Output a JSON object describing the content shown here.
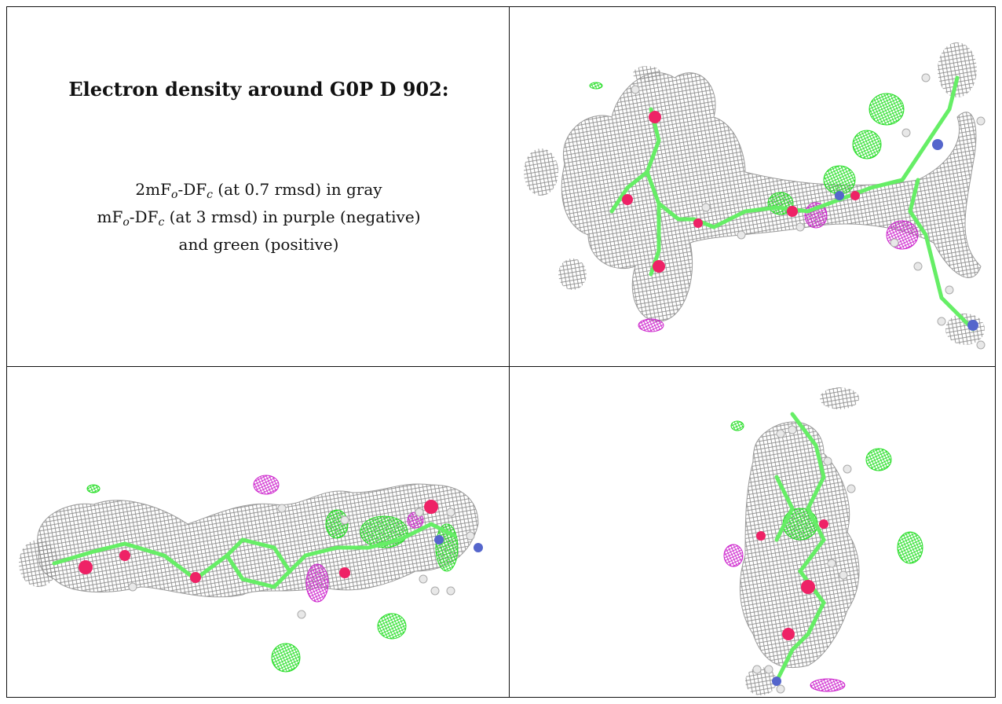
{
  "caption": {
    "title": "Electron density around G0P D 902:",
    "line1": {
      "a": "2mF",
      "o_sub": "o",
      "b": "-DF",
      "c_sub": "c",
      "rest": " (at 0.7 rmsd) in gray"
    },
    "line2": {
      "a": "mF",
      "o_sub": "o",
      "b": "-DF",
      "c_sub": "c",
      "rest": " (at 3 rmsd) in purple (negative)"
    },
    "line3": "and green (positive)"
  },
  "colors": {
    "mesh_gray": "#8c8c8c",
    "positive_green": "#22dd22",
    "negative_purple": "#cc22cc",
    "carbon_green": "#66ee66",
    "oxygen_red": "#ee2266",
    "nitrogen_blue": "#5566cc",
    "hydrogen_white": "#e8e8e8"
  },
  "panels": [
    {
      "id": "top-right",
      "view": "front"
    },
    {
      "id": "bottom-left",
      "view": "side"
    },
    {
      "id": "bottom-right",
      "view": "end-on"
    }
  ]
}
